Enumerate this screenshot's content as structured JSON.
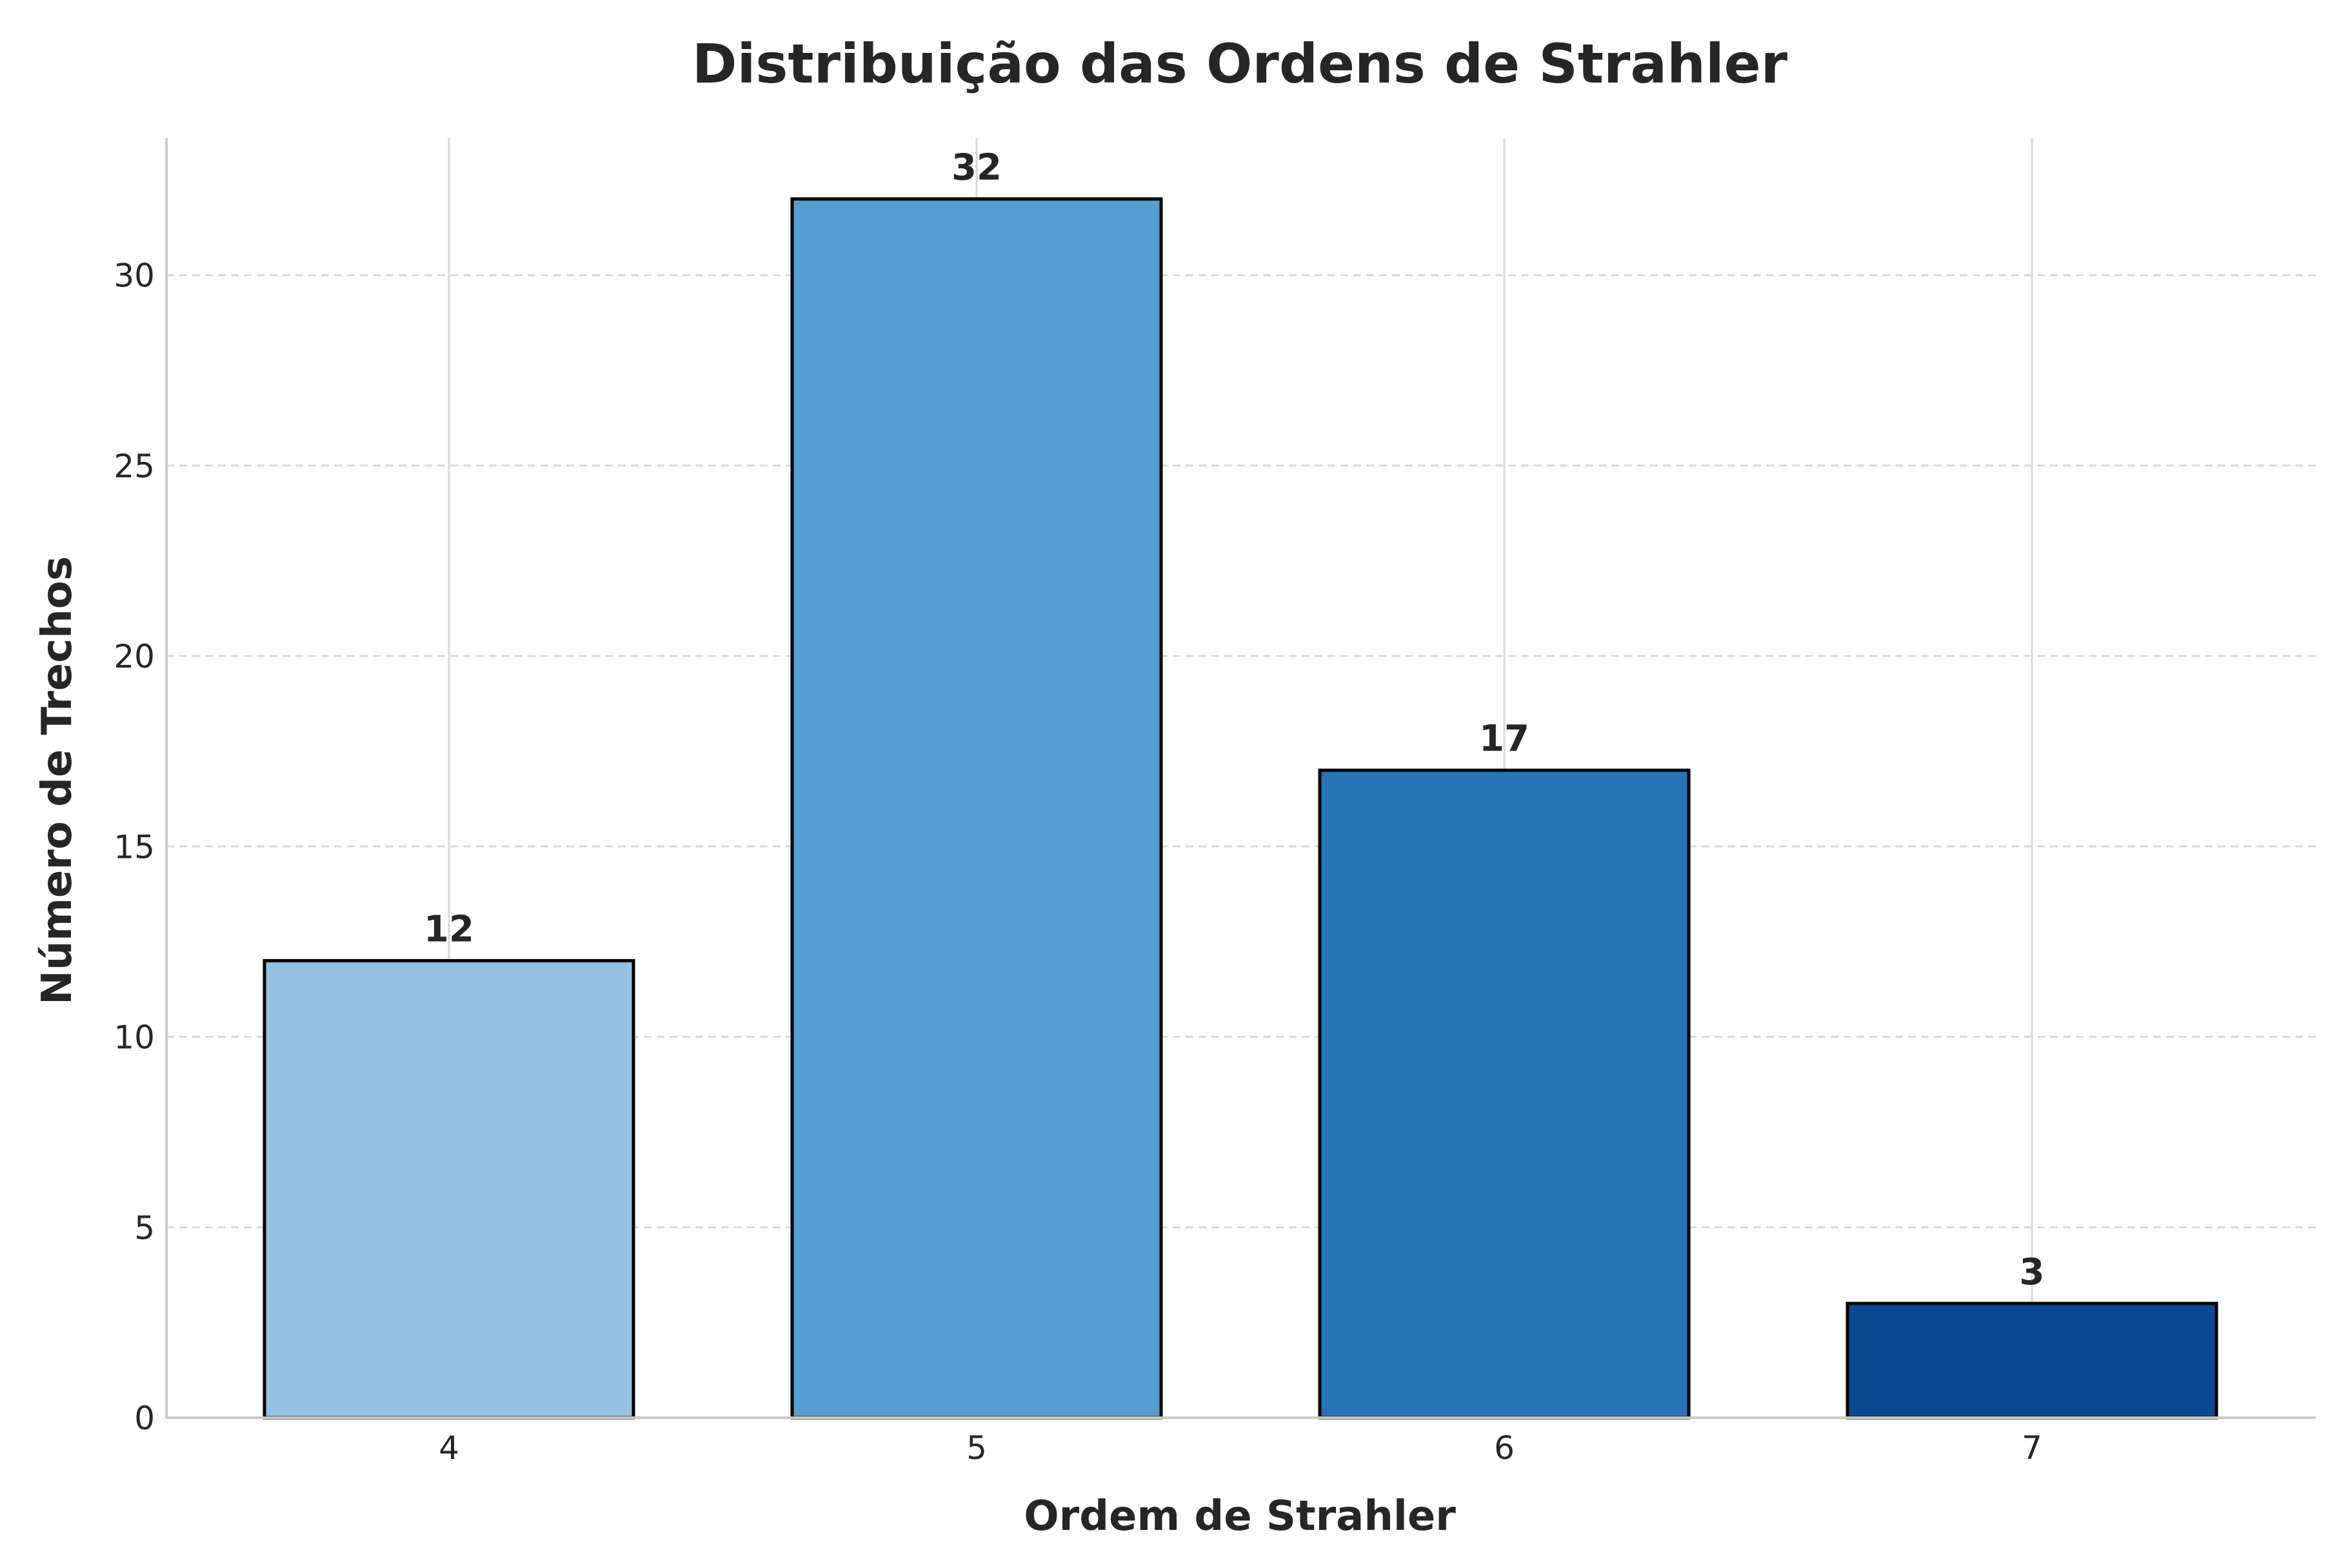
{
  "chart_data": {
    "type": "bar",
    "title": "Distribuição das Ordens de Strahler",
    "xlabel": "Ordem de Strahler",
    "ylabel": "Número de Trechos",
    "categories": [
      "4",
      "5",
      "6",
      "7"
    ],
    "values": [
      12,
      32,
      17,
      3
    ],
    "data_labels": [
      "12",
      "32",
      "17",
      "3"
    ],
    "ylim": [
      0,
      33.6
    ],
    "yticks": [
      0,
      5,
      10,
      15,
      20,
      25,
      30
    ],
    "ytick_labels": [
      "0",
      "5",
      "10",
      "15",
      "20",
      "25",
      "30"
    ],
    "grid": true,
    "bar_colors": [
      "#95c2e0",
      "#569ecd",
      "#2775b6",
      "#084a91"
    ],
    "bar_edge_color": "#000000",
    "grid_color": "#d9d9d9",
    "axis_color": "#c8c8c8"
  }
}
